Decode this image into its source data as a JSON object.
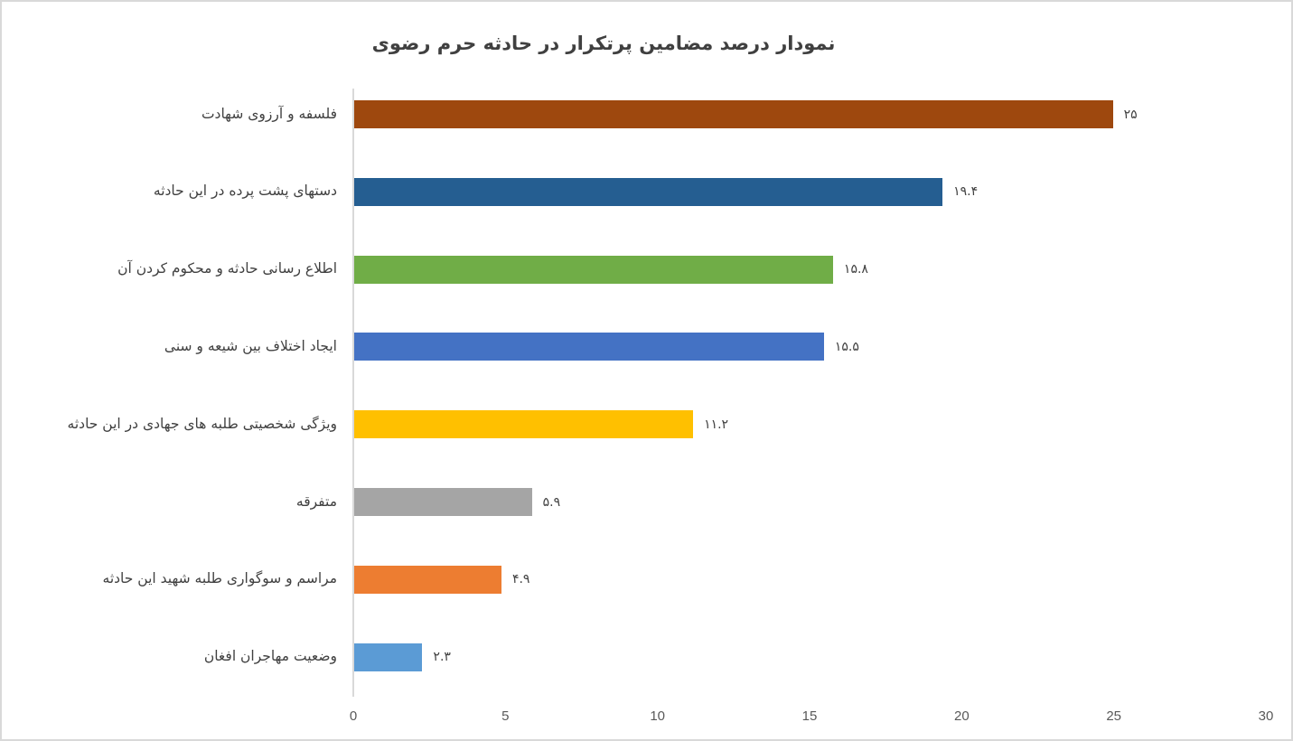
{
  "chart_data": {
    "type": "bar",
    "orientation": "horizontal",
    "title": "نمودار درصد مضامین پرتکرار در حادثه حرم رضوی",
    "xlabel": "",
    "ylabel": "",
    "xlim": [
      0,
      30
    ],
    "x_ticks": [
      "0",
      "5",
      "10",
      "15",
      "20",
      "25",
      "30"
    ],
    "grid": false,
    "legend": null,
    "categories": [
      "فلسفه  و آرزوی شهادت",
      "دستهای پشت پرده در این حادثه",
      "اطلاع رسانی حادثه و محکوم کردن آن",
      "ایجاد اختلاف بین شیعه و سنی",
      "ویژگی شخصیتی طلبه های جهادی در این حادثه",
      "متفرقه",
      "مراسم و سوگواری طلبه شهید این حادثه",
      "وضعیت مهاجران افغان"
    ],
    "values": [
      25,
      19.4,
      15.8,
      15.5,
      11.2,
      5.9,
      4.9,
      2.3
    ],
    "value_labels": [
      "۲۵",
      "۱۹.۴",
      "۱۵.۸",
      "۱۵.۵",
      "۱۱.۲",
      "۵.۹",
      "۴.۹",
      "۲.۳"
    ],
    "colors": [
      "#9e480e",
      "#255e91",
      "#70ad47",
      "#4472c4",
      "#ffc000",
      "#a5a5a5",
      "#ed7d31",
      "#5b9bd5"
    ]
  }
}
